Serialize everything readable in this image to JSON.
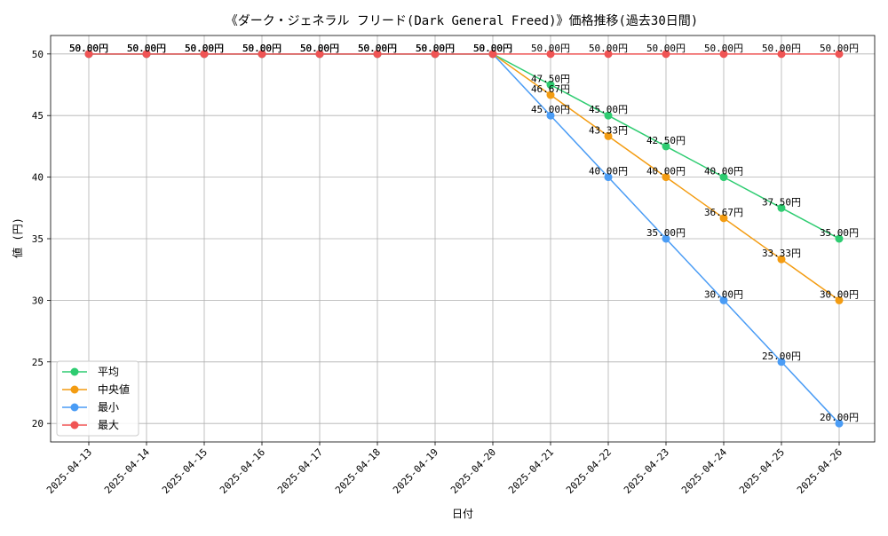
{
  "chart_data": {
    "type": "line",
    "title": "《ダーク・ジェネラル フリード(Dark General Freed)》価格推移(過去30日間)",
    "xlabel": "日付",
    "ylabel": "値 (円)",
    "ylim": [
      18.5,
      51.5
    ],
    "yticks": [
      20,
      25,
      30,
      35,
      40,
      45,
      50
    ],
    "grid": true,
    "legend_position": "lower-left",
    "categories": [
      "2025-04-13",
      "2025-04-14",
      "2025-04-15",
      "2025-04-16",
      "2025-04-17",
      "2025-04-18",
      "2025-04-19",
      "2025-04-20",
      "2025-04-21",
      "2025-04-22",
      "2025-04-23",
      "2025-04-24",
      "2025-04-25",
      "2025-04-26"
    ],
    "label_suffix": "円",
    "series": [
      {
        "name": "平均",
        "color": "#2ecc71",
        "values": [
          50,
          50,
          50,
          50,
          50,
          50,
          50,
          50,
          47.5,
          45.0,
          42.5,
          40.0,
          37.5,
          35.0
        ]
      },
      {
        "name": "中央値",
        "color": "#f39c12",
        "values": [
          50,
          50,
          50,
          50,
          50,
          50,
          50,
          50,
          46.67,
          43.33,
          40.0,
          36.67,
          33.33,
          30.0
        ]
      },
      {
        "name": "最小",
        "color": "#4a9cf5",
        "values": [
          50,
          50,
          50,
          50,
          50,
          50,
          50,
          50,
          45.0,
          40.0,
          35.0,
          30.0,
          25.0,
          20.0
        ]
      },
      {
        "name": "最大",
        "color": "#f05454",
        "values": [
          50,
          50,
          50,
          50,
          50,
          50,
          50,
          50,
          50.0,
          50.0,
          50.0,
          50.0,
          50.0,
          50.0
        ]
      }
    ]
  }
}
